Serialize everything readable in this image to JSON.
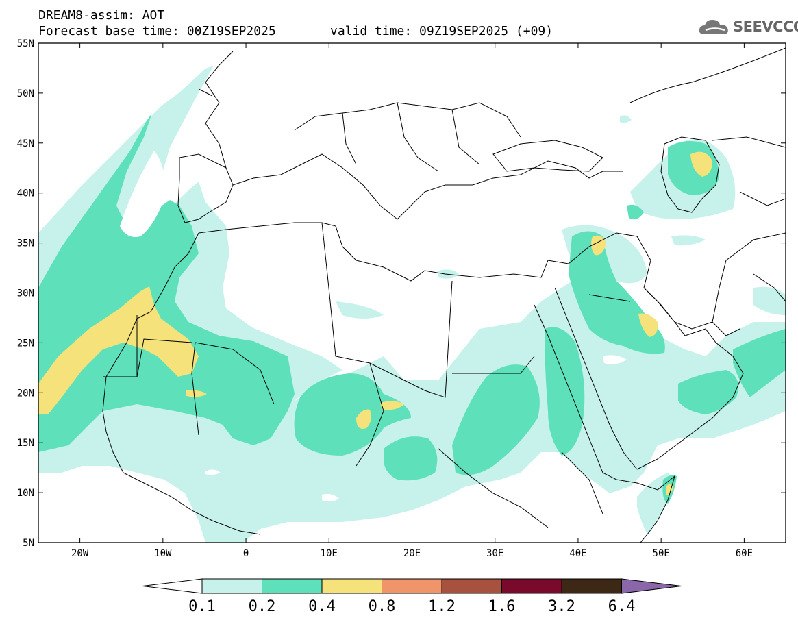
{
  "header": {
    "title": "DREAM8-assim: AOT",
    "base_time": "Forecast base time: 00Z19SEP2025",
    "valid_time": "valid time: 09Z19SEP2025 (+09)",
    "logo_text": "SEEVCCC",
    "logo_icon": "cloud-icon"
  },
  "map": {
    "lat_labels": [
      "55N",
      "50N",
      "45N",
      "40N",
      "35N",
      "30N",
      "25N",
      "20N",
      "15N",
      "10N",
      "5N"
    ],
    "lon_labels": [
      "20W",
      "10W",
      "0",
      "10E",
      "20E",
      "30E",
      "40E",
      "50E",
      "60E"
    ],
    "lat_range": [
      5,
      55
    ],
    "lon_range": [
      -25,
      65
    ],
    "land_color": "#ffffff",
    "boundary_color": "#000000"
  },
  "legend": {
    "labels": [
      "0.1",
      "0.2",
      "0.4",
      "0.8",
      "1.2",
      "1.6",
      "3.2",
      "6.4"
    ],
    "colors": [
      "#ffffff",
      "#c7f2ec",
      "#5ee0ba",
      "#f5e27a",
      "#f0946a",
      "#a8513e",
      "#7a0a2c",
      "#3d2816",
      "#8a67a8"
    ]
  }
}
